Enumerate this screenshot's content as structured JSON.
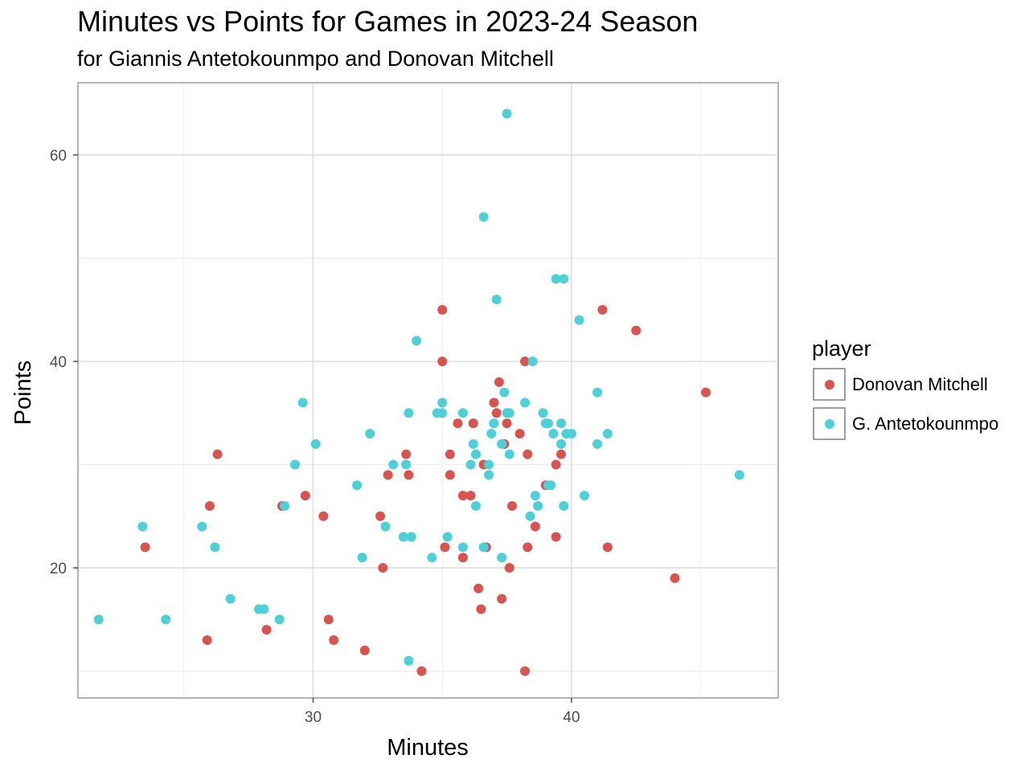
{
  "chart_data": {
    "type": "scatter",
    "title": "Minutes vs Points for Games in 2023-24 Season",
    "subtitle": "for Giannis Antetokounmpo and Donovan Mitchell",
    "xlabel": "Minutes",
    "ylabel": "Points",
    "xlim": [
      20.9,
      48.0
    ],
    "ylim": [
      7.4,
      67.0
    ],
    "x_ticks": [
      30,
      40
    ],
    "y_ticks": [
      20,
      40,
      60
    ],
    "grid": true,
    "legend": {
      "title": "player",
      "placement": "right"
    },
    "series": [
      {
        "name": "Donovan Mitchell",
        "color": "#d9534f",
        "points": [
          [
            23.5,
            22
          ],
          [
            25.9,
            13
          ],
          [
            26.0,
            26
          ],
          [
            26.3,
            31
          ],
          [
            28.2,
            14
          ],
          [
            28.8,
            26
          ],
          [
            29.7,
            27
          ],
          [
            30.4,
            25
          ],
          [
            30.6,
            15
          ],
          [
            30.8,
            13
          ],
          [
            32.0,
            12
          ],
          [
            32.6,
            25
          ],
          [
            32.7,
            20
          ],
          [
            32.9,
            29
          ],
          [
            33.6,
            31
          ],
          [
            33.7,
            29
          ],
          [
            33.5,
            23
          ],
          [
            34.2,
            10
          ],
          [
            35.0,
            45
          ],
          [
            35.0,
            40
          ],
          [
            35.1,
            22
          ],
          [
            35.3,
            31
          ],
          [
            35.3,
            29
          ],
          [
            35.6,
            34
          ],
          [
            35.8,
            27
          ],
          [
            35.8,
            21
          ],
          [
            36.1,
            27
          ],
          [
            36.2,
            34
          ],
          [
            36.4,
            18
          ],
          [
            36.5,
            16
          ],
          [
            36.6,
            30
          ],
          [
            36.7,
            22
          ],
          [
            37.0,
            36
          ],
          [
            37.1,
            35
          ],
          [
            37.2,
            38
          ],
          [
            37.3,
            17
          ],
          [
            37.4,
            32
          ],
          [
            37.5,
            34
          ],
          [
            37.6,
            20
          ],
          [
            37.7,
            26
          ],
          [
            38.0,
            33
          ],
          [
            38.2,
            40
          ],
          [
            38.2,
            10
          ],
          [
            38.3,
            31
          ],
          [
            38.3,
            22
          ],
          [
            38.6,
            24
          ],
          [
            39.0,
            28
          ],
          [
            39.4,
            30
          ],
          [
            39.4,
            23
          ],
          [
            39.6,
            31
          ],
          [
            41.2,
            45
          ],
          [
            41.4,
            22
          ],
          [
            42.5,
            43
          ],
          [
            44.0,
            19
          ],
          [
            45.2,
            37
          ]
        ]
      },
      {
        "name": "G. Antetokounmpo",
        "color": "#4dd0d8",
        "points": [
          [
            21.7,
            15
          ],
          [
            23.4,
            24
          ],
          [
            24.3,
            15
          ],
          [
            25.7,
            24
          ],
          [
            26.2,
            22
          ],
          [
            26.8,
            17
          ],
          [
            27.9,
            16
          ],
          [
            28.1,
            16
          ],
          [
            28.7,
            15
          ],
          [
            28.9,
            26
          ],
          [
            29.3,
            30
          ],
          [
            29.6,
            36
          ],
          [
            30.1,
            32
          ],
          [
            31.7,
            28
          ],
          [
            31.9,
            21
          ],
          [
            32.2,
            33
          ],
          [
            32.8,
            24
          ],
          [
            33.1,
            30
          ],
          [
            33.5,
            23
          ],
          [
            33.6,
            30
          ],
          [
            33.7,
            35
          ],
          [
            33.8,
            23
          ],
          [
            33.7,
            11
          ],
          [
            34.0,
            42
          ],
          [
            34.6,
            21
          ],
          [
            34.8,
            35
          ],
          [
            35.0,
            35
          ],
          [
            35.0,
            36
          ],
          [
            35.2,
            23
          ],
          [
            35.8,
            35
          ],
          [
            35.8,
            22
          ],
          [
            36.1,
            30
          ],
          [
            36.2,
            32
          ],
          [
            36.3,
            31
          ],
          [
            36.3,
            26
          ],
          [
            36.6,
            54
          ],
          [
            36.6,
            22
          ],
          [
            36.8,
            29
          ],
          [
            36.8,
            30
          ],
          [
            36.9,
            33
          ],
          [
            37.0,
            34
          ],
          [
            37.1,
            46
          ],
          [
            37.3,
            32
          ],
          [
            37.3,
            21
          ],
          [
            37.4,
            37
          ],
          [
            37.5,
            35
          ],
          [
            37.6,
            35
          ],
          [
            37.6,
            31
          ],
          [
            37.5,
            64
          ],
          [
            38.2,
            36
          ],
          [
            38.4,
            25
          ],
          [
            38.5,
            40
          ],
          [
            38.6,
            27
          ],
          [
            38.7,
            26
          ],
          [
            38.9,
            35
          ],
          [
            39.0,
            34
          ],
          [
            39.1,
            34
          ],
          [
            39.1,
            28
          ],
          [
            39.2,
            28
          ],
          [
            39.3,
            33
          ],
          [
            39.4,
            48
          ],
          [
            39.6,
            32
          ],
          [
            39.6,
            34
          ],
          [
            39.7,
            26
          ],
          [
            39.7,
            48
          ],
          [
            39.8,
            33
          ],
          [
            40.0,
            33
          ],
          [
            40.3,
            44
          ],
          [
            40.5,
            27
          ],
          [
            41.0,
            37
          ],
          [
            41.0,
            32
          ],
          [
            41.4,
            33
          ],
          [
            46.5,
            29
          ]
        ]
      }
    ]
  }
}
